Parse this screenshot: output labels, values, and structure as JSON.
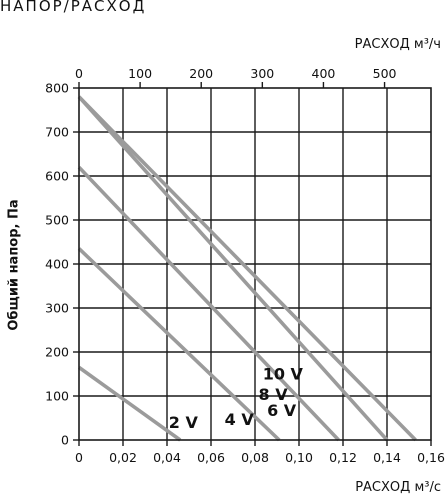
{
  "page_title": "НАПОР/РАСХОД",
  "chart_data": {
    "type": "line",
    "x_label": "РАСХОД м³/с",
    "x2_label": "РАСХОД м³/ч",
    "y_label": "Общий напор, Па",
    "x_range": [
      0,
      0.16
    ],
    "x2_range": [
      0,
      576
    ],
    "y_range": [
      0,
      800
    ],
    "x_ticks": [
      "0",
      "0,02",
      "0,04",
      "0,06",
      "0,08",
      "0,10",
      "0,12",
      "0,14",
      "0,16"
    ],
    "x2_ticks": [
      "0",
      "100",
      "200",
      "300",
      "400",
      "500"
    ],
    "y_ticks": [
      "0",
      "100",
      "200",
      "300",
      "400",
      "500",
      "600",
      "700",
      "800"
    ],
    "grid": true,
    "series": [
      {
        "name": "10 V",
        "x": [
          0,
          0.153
        ],
        "y": [
          780,
          0
        ]
      },
      {
        "name": "8 V",
        "x": [
          0,
          0.14
        ],
        "y": [
          780,
          0
        ]
      },
      {
        "name": "6 V",
        "x": [
          0,
          0.118
        ],
        "y": [
          620,
          0
        ]
      },
      {
        "name": "4 V",
        "x": [
          0,
          0.091
        ],
        "y": [
          435,
          0
        ]
      },
      {
        "name": "2 V",
        "x": [
          0,
          0.046
        ],
        "y": [
          165,
          0
        ]
      }
    ]
  }
}
